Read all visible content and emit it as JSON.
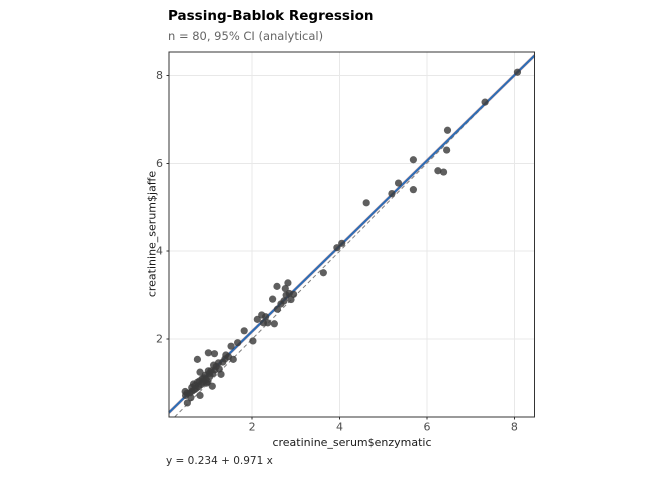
{
  "header": {
    "title": "Passing-Bablok Regression",
    "subtitle": "n = 80, 95% CI (analytical)"
  },
  "caption": "y = 0.234 + 0.971 x",
  "chart_data": {
    "type": "scatter",
    "title": "Passing-Bablok Regression",
    "subtitle": "n = 80, 95% CI (analytical)",
    "xlabel": "creatinine_serum$enzymatic",
    "ylabel": "creatinine_serum$jaffe",
    "xlim": [
      0.1,
      8.46
    ],
    "ylim": [
      0.23,
      8.53
    ],
    "x_ticks": [
      2,
      4,
      6,
      8
    ],
    "y_ticks": [
      2,
      4,
      6,
      8
    ],
    "grid": "major-only",
    "legend": "none",
    "n": 80,
    "points": [
      [
        1.82,
        2.19
      ],
      [
        2.02,
        1.96
      ],
      [
        2.12,
        2.45
      ],
      [
        2.22,
        2.55
      ],
      [
        2.31,
        2.51
      ],
      [
        2.26,
        2.37
      ],
      [
        2.36,
        2.37
      ],
      [
        2.47,
        2.91
      ],
      [
        2.51,
        2.35
      ],
      [
        2.58,
        2.68
      ],
      [
        2.66,
        2.8
      ],
      [
        2.73,
        2.87
      ],
      [
        2.78,
        3.0
      ],
      [
        2.85,
        3.04
      ],
      [
        2.89,
        2.9
      ],
      [
        2.95,
        3.02
      ],
      [
        2.76,
        3.15
      ],
      [
        2.57,
        3.2
      ],
      [
        2.82,
        3.28
      ],
      [
        3.63,
        3.51
      ],
      [
        3.94,
        4.08
      ],
      [
        4.05,
        4.18
      ],
      [
        4.61,
        5.1
      ],
      [
        5.2,
        5.31
      ],
      [
        5.35,
        5.55
      ],
      [
        5.69,
        6.08
      ],
      [
        5.69,
        5.4
      ],
      [
        6.25,
        5.83
      ],
      [
        6.38,
        5.8
      ],
      [
        6.45,
        6.3
      ],
      [
        6.47,
        6.75
      ],
      [
        7.33,
        7.39
      ],
      [
        8.07,
        8.07
      ],
      [
        0.75,
        1.54
      ],
      [
        1.0,
        1.69
      ],
      [
        1.14,
        1.67
      ],
      [
        1.52,
        1.84
      ],
      [
        1.67,
        1.92
      ],
      [
        1.4,
        1.64
      ],
      [
        1.46,
        1.6
      ],
      [
        1.57,
        1.54
      ],
      [
        1.12,
        1.41
      ],
      [
        1.23,
        1.46
      ],
      [
        1.04,
        1.16
      ],
      [
        0.99,
        1.03
      ],
      [
        1.09,
        0.93
      ],
      [
        0.81,
        1.25
      ],
      [
        1.0,
        1.28
      ],
      [
        1.15,
        1.3
      ],
      [
        1.29,
        1.2
      ],
      [
        0.66,
        0.98
      ],
      [
        0.96,
        1.0
      ],
      [
        0.47,
        0.81
      ],
      [
        0.6,
        0.67
      ],
      [
        0.81,
        0.72
      ],
      [
        0.48,
        0.72
      ],
      [
        0.51,
        0.77
      ],
      [
        0.63,
        0.82
      ],
      [
        0.52,
        0.55
      ],
      [
        0.58,
        0.78
      ],
      [
        0.62,
        0.9
      ],
      [
        0.68,
        0.85
      ],
      [
        0.7,
        0.95
      ],
      [
        0.72,
        0.88
      ],
      [
        0.75,
        1.02
      ],
      [
        0.78,
        0.92
      ],
      [
        0.8,
        1.05
      ],
      [
        0.84,
        0.97
      ],
      [
        0.86,
        1.1
      ],
      [
        0.88,
        1.02
      ],
      [
        0.9,
        1.12
      ],
      [
        0.93,
        1.18
      ],
      [
        0.95,
        1.08
      ],
      [
        1.02,
        1.22
      ],
      [
        1.06,
        1.28
      ],
      [
        1.1,
        1.22
      ],
      [
        1.18,
        1.38
      ],
      [
        1.25,
        1.32
      ],
      [
        1.33,
        1.48
      ],
      [
        1.38,
        1.55
      ]
    ],
    "fit_line": {
      "equation": "y = 0.234 + 0.971 x",
      "intercept": 0.234,
      "slope": 0.971,
      "color": "#2e6db4",
      "width": 2.2
    },
    "ci_band": {
      "label": "95% CI (analytical)",
      "half_width": 0.05,
      "color": "#e08a7e",
      "opacity": 0.5
    },
    "identity_line": {
      "slope": 1,
      "intercept": 0,
      "style": "dashed",
      "color": "#7f7f7f"
    },
    "point_style": {
      "color": "#3c3c3c",
      "opacity": 0.82,
      "radius": 3.6
    },
    "panel": {
      "background": "#ffffff",
      "grid_color": "#e8e8e8",
      "border_color": "#343434",
      "tick_color": "#333333",
      "tick_label_color": "#4d4d4d"
    }
  }
}
